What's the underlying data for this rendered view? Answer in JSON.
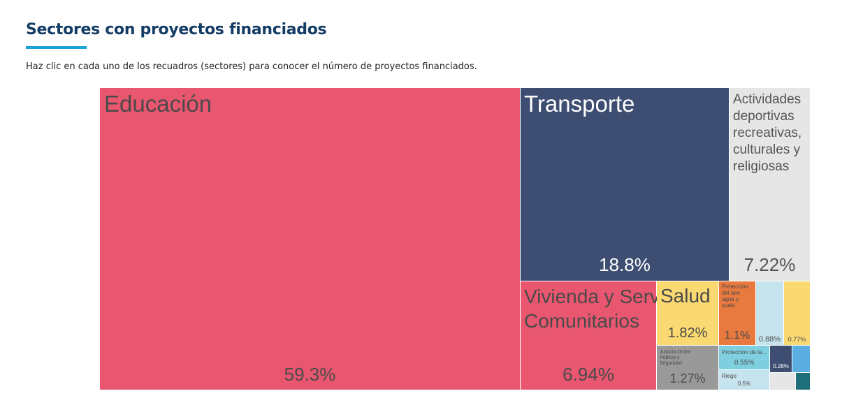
{
  "header": {
    "title": "Sectores con proyectos financiados",
    "subtitle": "Haz clic en cada uno de los recuadros (sectores) para conocer el número de proyectos financiados."
  },
  "chart_data": {
    "type": "treemap",
    "unit": "%",
    "items": [
      {
        "label": "Educación",
        "value": 59.3,
        "value_label": "59.3%",
        "color": "#e9566f",
        "text_color": "#4a4a4a"
      },
      {
        "label": "Transporte",
        "value": 18.8,
        "value_label": "18.8%",
        "color": "#3d4e72",
        "text_color": "#ffffff"
      },
      {
        "label": "Actividades deportivas recreativas, culturales y religiosas",
        "value": 7.22,
        "value_label": "7.22%",
        "color": "#e6e6e6",
        "text_color": "#555555"
      },
      {
        "label": "Vivienda y Servicios Comunitarios",
        "value": 6.94,
        "value_label": "6.94%",
        "color": "#e9566f",
        "text_color": "#4a4a4a"
      },
      {
        "label": "Salud",
        "value": 1.82,
        "value_label": "1.82%",
        "color": "#fbd972",
        "text_color": "#4a4a4a"
      },
      {
        "label": "Protección del aire agua y suelo",
        "value": 1.1,
        "value_label": "1.1%",
        "color": "#e8793f",
        "text_color": "#4a4a4a"
      },
      {
        "label": "",
        "value": 0.88,
        "value_label": "0.88%",
        "color": "#c6e4ee",
        "text_color": "#4a4a4a"
      },
      {
        "label": "",
        "value": 0.77,
        "value_label": "0.77%",
        "color": "#fbd972",
        "text_color": "#4a4a4a"
      },
      {
        "label": "Justicia Orden Público y Seguridad",
        "value": 1.27,
        "value_label": "1.27%",
        "color": "#999999",
        "text_color": "#4a4a4a"
      },
      {
        "label": "Protección de la...",
        "value": 0.55,
        "value_label": "0.55%",
        "color": "#7fcfe0",
        "text_color": "#4a4a4a"
      },
      {
        "label": "",
        "value": 0.28,
        "value_label": "0.28%",
        "color": "#3d4e72",
        "text_color": "#ffffff"
      },
      {
        "label": "",
        "value": 0.22,
        "value_label": "",
        "color": "#5aaee0",
        "text_color": "#4a4a4a"
      },
      {
        "label": "Riego",
        "value": 0.5,
        "value_label": "0.5%",
        "color": "#c6e4ee",
        "text_color": "#4a4a4a"
      },
      {
        "label": "",
        "value": 0.2,
        "value_label": "",
        "color": "#e6e6e6",
        "text_color": "#4a4a4a"
      },
      {
        "label": "",
        "value": 0.1,
        "value_label": "",
        "color": "#1f6f7a",
        "text_color": "#ffffff"
      }
    ]
  }
}
